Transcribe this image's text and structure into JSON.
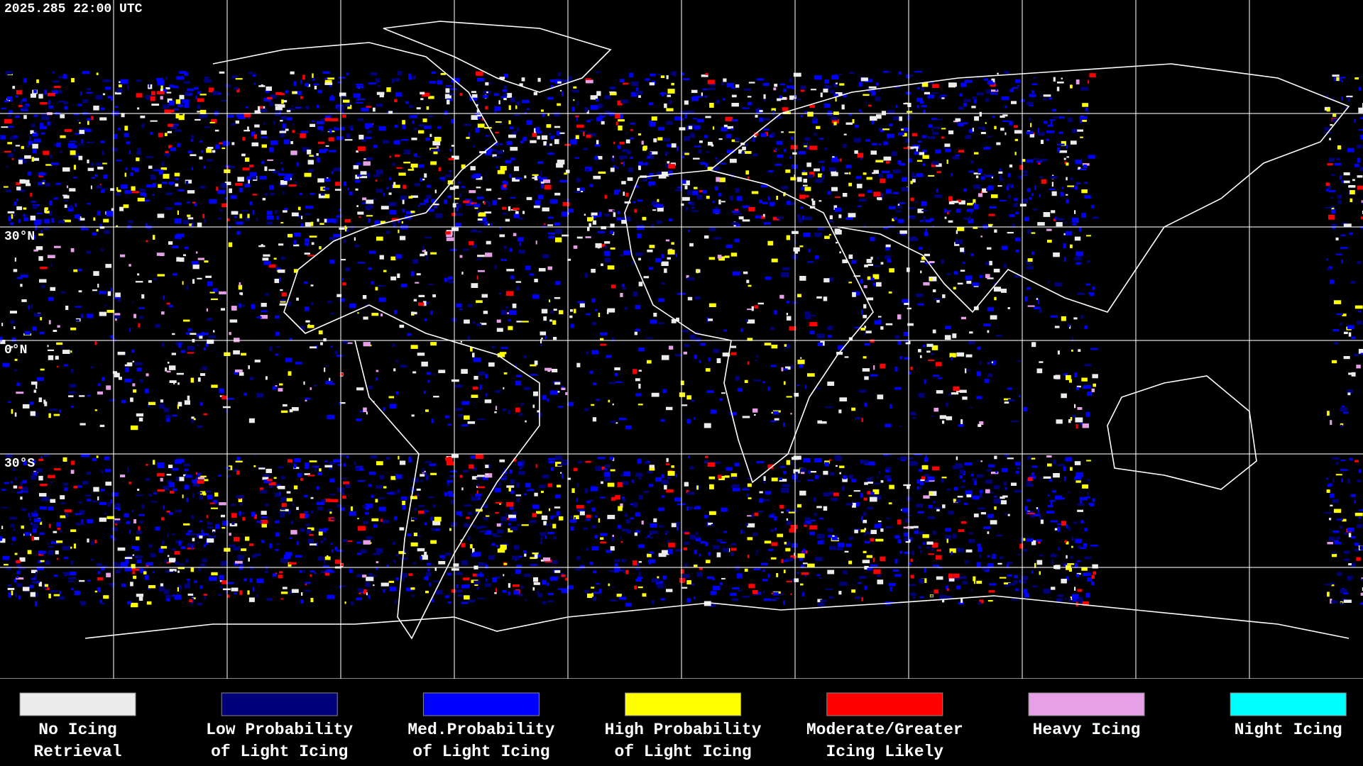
{
  "timestamp": "2025.285 22:00 UTC",
  "latitude_labels": [
    "30°N",
    "0°N",
    "30°S"
  ],
  "legend": [
    {
      "lines": [
        "No Icing",
        "Retrieval"
      ],
      "color": "#ececec"
    },
    {
      "lines": [
        "Low Probability",
        "of Light Icing"
      ],
      "color": "#00007a"
    },
    {
      "lines": [
        "Med.Probability",
        "of Light Icing"
      ],
      "color": "#0000ff"
    },
    {
      "lines": [
        "High Probability",
        "of Light Icing"
      ],
      "color": "#ffff00"
    },
    {
      "lines": [
        "Moderate/Greater",
        "Icing Likely"
      ],
      "color": "#ff0000"
    },
    {
      "lines": [
        "Heavy Icing"
      ],
      "color": "#e6a0e6"
    },
    {
      "lines": [
        "Night Icing"
      ],
      "color": "#00ffff"
    }
  ]
}
